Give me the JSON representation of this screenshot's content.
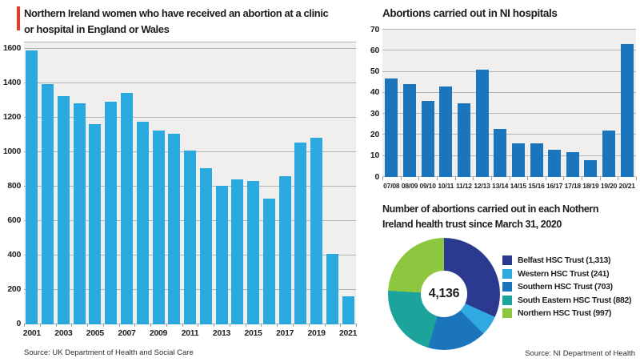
{
  "page": {
    "background": "#ffffff",
    "accent_red": "#e8392f",
    "plot_background": "#f0efed",
    "gridline_color": "#b5b5b3"
  },
  "chart_data": [
    {
      "type": "bar",
      "title": "Northern Ireland women who have received an abortion at a clinic or hospital in England or Wales",
      "title_lines": [
        "Northern Ireland women who  have received an abortion at a clinic",
        "or hospital in England or Wales"
      ],
      "source": "Source: UK Department of Health and Social Care",
      "bar_color": "#29a9e0",
      "categories": [
        "2001",
        "2002",
        "2003",
        "2004",
        "2005",
        "2006",
        "2007",
        "2008",
        "2009",
        "2010",
        "2011",
        "2012",
        "2013",
        "2014",
        "2015",
        "2016",
        "2017",
        "2018",
        "2019",
        "2020",
        "2021"
      ],
      "values": [
        1590,
        1395,
        1325,
        1285,
        1165,
        1295,
        1345,
        1175,
        1125,
        1105,
        1010,
        905,
        805,
        840,
        835,
        730,
        860,
        1055,
        1085,
        410,
        165
      ],
      "ylim": [
        0,
        1600
      ],
      "ytick_step": 200,
      "xtick_labels_shown": [
        "2001",
        "2003",
        "2005",
        "2007",
        "2009",
        "2011",
        "2013",
        "2015",
        "2017",
        "2019",
        "2021"
      ],
      "grid": true,
      "legend_position": "none"
    },
    {
      "type": "bar",
      "title": "Abortions carried out in NI hospitals",
      "bar_color": "#1b75bc",
      "categories": [
        "07/08",
        "08/09",
        "09/10",
        "10/11",
        "11/12",
        "12/13",
        "13/14",
        "14/15",
        "15/16",
        "16/17",
        "17/18",
        "18/19",
        "19/20",
        "20/21"
      ],
      "values": [
        47,
        44,
        36,
        43,
        35,
        51,
        23,
        16,
        16,
        13,
        12,
        8,
        22,
        63
      ],
      "ylim": [
        0,
        70
      ],
      "ytick_step": 10,
      "grid": true,
      "legend_position": "none"
    },
    {
      "type": "pie",
      "subtype": "donut",
      "title": "Number of abortions carried out in each Nothern Ireland health trust since March 31, 2020",
      "title_lines": [
        "Number of abortions carried out in each Nothern",
        "Ireland health trust since March 31, 2020"
      ],
      "center_label": "4,136",
      "total": 4136,
      "series": [
        {
          "name": "Belfast HSC Trust",
          "value": 1313,
          "legend_label": "Belfast HSC Trust (1,313)",
          "color": "#2b3a8e"
        },
        {
          "name": "Western HSC Trust",
          "value": 241,
          "legend_label": "Western HSC Trust (241)",
          "color": "#30a8e0"
        },
        {
          "name": "Southern HSC Trust",
          "value": 703,
          "legend_label": "Southern HSC Trust (703)",
          "color": "#1b75bc"
        },
        {
          "name": "South Eastern HSC Trust",
          "value": 882,
          "legend_label": "South Eastern HSC Trust (882)",
          "color": "#1ba39c"
        },
        {
          "name": "Northern HSC Trust",
          "value": 997,
          "legend_label": "Northern HSC Trust (997)",
          "color": "#8dc63f"
        }
      ],
      "legend_position": "right",
      "source": "Source: NI Department of Health"
    }
  ]
}
